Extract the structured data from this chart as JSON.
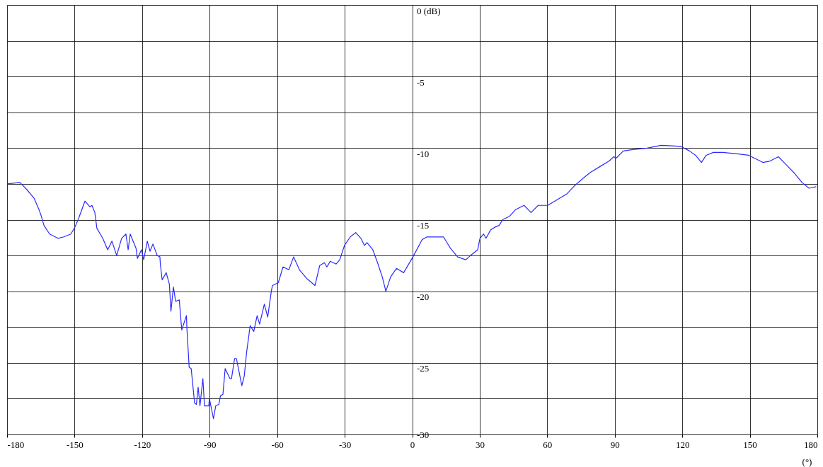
{
  "chart_data": {
    "type": "line",
    "xlabel": "(°)",
    "xlim": [
      -180,
      180
    ],
    "xticks": [
      -180,
      -150,
      -120,
      -90,
      -60,
      -30,
      0,
      30,
      60,
      90,
      120,
      150,
      180
    ],
    "ylim": [
      -30,
      0
    ],
    "yticks": [
      {
        "value": 0,
        "label": "0 (dB)"
      },
      {
        "value": -2.5,
        "label": null
      },
      -5,
      {
        "value": -7.5,
        "label": null
      },
      -10,
      {
        "value": -12.5,
        "label": null
      },
      -15,
      {
        "value": -17.5,
        "label": null
      },
      -20,
      {
        "value": -22.5,
        "label": null
      },
      -25,
      {
        "value": -27.5,
        "label": null
      },
      -30
    ],
    "grid": true,
    "marker": "none",
    "line_style": "solid",
    "series": [
      {
        "color": "#2a2aff",
        "x": [
          -180,
          -174.3,
          -171.2,
          -168.0,
          -165.8,
          -164.9,
          -163.6,
          -161.1,
          -157.4,
          -154.8,
          -151.7,
          -150.1,
          -148.2,
          -145.4,
          -143.2,
          -142.3,
          -141.0,
          -140.1,
          -137.5,
          -135.3,
          -133.4,
          -131.3,
          -129.1,
          -127.2,
          -126.2,
          -125.3,
          -122.7,
          -122.1,
          -120.3,
          -119.3,
          -117.7,
          -116.5,
          -115.2,
          -113.3,
          -112.1,
          -111.9,
          -111.1,
          -109.3,
          -107.9,
          -107.2,
          -106.1,
          -105.1,
          -103.5,
          -102.4,
          -100.3,
          -100.1,
          -99.1,
          -98.2,
          -96.7,
          -95.9,
          -95.1,
          -94.3,
          -93.0,
          -92.3,
          -90.4,
          -90.1,
          -88.3,
          -87.3,
          -85.9,
          -85.2,
          -84.1,
          -83.1,
          -81.0,
          -80.3,
          -78.9,
          -78.1,
          -75.7,
          -74.6,
          -73.6,
          -72.0,
          -70.4,
          -68.9,
          -67.8,
          -65.7,
          -64.2,
          -62.6,
          -62.1,
          -59.5,
          -57.4,
          -54.8,
          -52.7,
          -50.1,
          -46.9,
          -43.2,
          -41.1,
          -39.0,
          -37.9,
          -36.4,
          -33.8,
          -32.2,
          -30.1,
          -27.5,
          -25.1,
          -22.8,
          -21.2,
          -20.1,
          -17.5,
          -15.4,
          -13.3,
          -11.7,
          -9.6,
          -7.0,
          -3.8,
          0.3,
          4.4,
          6.5,
          9.7,
          13.9,
          17.0,
          20.2,
          23.8,
          25.9,
          29.1,
          30.1,
          31.7,
          32.8,
          34.9,
          37.0,
          38.6,
          40.2,
          43.3,
          45.9,
          49.7,
          52.8,
          56.0,
          60.2,
          64.4,
          68.7,
          72.3,
          76.0,
          79.1,
          83.3,
          87.5,
          89.6,
          90.6,
          93.8,
          98.0,
          104.3,
          110.6,
          116.9,
          119.6,
          123.2,
          125.9,
          128.5,
          130.6,
          133.8,
          138.0,
          144.3,
          149.5,
          155.8,
          159.0,
          162.7,
          165.8,
          169.5,
          173.2,
          176.3,
          179.5
        ],
        "values": [
          -12.5,
          -12.4,
          -12.9,
          -13.5,
          -14.3,
          -14.7,
          -15.4,
          -16.0,
          -16.3,
          -16.2,
          -16.0,
          -15.6,
          -14.9,
          -13.7,
          -14.1,
          -14.0,
          -14.5,
          -15.6,
          -16.3,
          -17.1,
          -16.5,
          -17.5,
          -16.3,
          -16.0,
          -17.1,
          -16.0,
          -17.0,
          -17.7,
          -17.1,
          -17.8,
          -16.5,
          -17.2,
          -16.7,
          -17.5,
          -17.6,
          -18.1,
          -19.2,
          -18.7,
          -19.5,
          -21.4,
          -19.7,
          -20.7,
          -20.6,
          -22.7,
          -21.7,
          -22.6,
          -25.3,
          -25.4,
          -27.8,
          -27.9,
          -26.7,
          -28.0,
          -26.1,
          -28.0,
          -28.0,
          -27.5,
          -28.9,
          -28.0,
          -27.9,
          -27.3,
          -27.2,
          -25.4,
          -26.1,
          -26.1,
          -24.7,
          -24.7,
          -26.6,
          -25.9,
          -24.3,
          -22.4,
          -22.8,
          -21.7,
          -22.3,
          -20.9,
          -21.8,
          -20.0,
          -19.6,
          -19.4,
          -18.3,
          -18.5,
          -17.6,
          -18.5,
          -19.1,
          -19.6,
          -18.2,
          -18.0,
          -18.3,
          -17.9,
          -18.1,
          -17.8,
          -16.8,
          -16.2,
          -15.9,
          -16.3,
          -16.8,
          -16.6,
          -17.1,
          -18.0,
          -19.0,
          -20.0,
          -19.0,
          -18.4,
          -18.7,
          -17.6,
          -16.4,
          -16.2,
          -16.2,
          -16.2,
          -17.0,
          -17.6,
          -17.8,
          -17.5,
          -17.1,
          -16.3,
          -16.0,
          -16.3,
          -15.7,
          -15.5,
          -15.4,
          -15.0,
          -14.75,
          -14.3,
          -14.0,
          -14.5,
          -14.0,
          -14.0,
          -13.6,
          -13.2,
          -12.6,
          -12.1,
          -11.7,
          -11.3,
          -10.9,
          -10.6,
          -10.7,
          -10.2,
          -10.1,
          -10.0,
          -9.8,
          -9.85,
          -9.9,
          -10.2,
          -10.5,
          -11.0,
          -10.5,
          -10.3,
          -10.3,
          -10.4,
          -10.5,
          -11.0,
          -10.9,
          -10.6,
          -11.1,
          -11.7,
          -12.4,
          -12.8,
          -12.7
        ]
      }
    ]
  }
}
